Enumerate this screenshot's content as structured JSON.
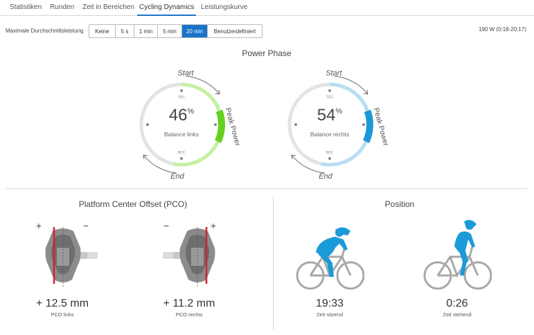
{
  "tabs": [
    {
      "label": "Statistiken"
    },
    {
      "label": "Runden"
    },
    {
      "label": "Zeit in Bereichen"
    },
    {
      "label": "Cycling Dynamics",
      "active": true
    },
    {
      "label": "Leistungskurve"
    }
  ],
  "mdl": {
    "label": "Maximale Durchschnittsleistung",
    "options": [
      {
        "label": "Keine"
      },
      {
        "label": "5 s"
      },
      {
        "label": "1 min"
      },
      {
        "label": "5 min"
      },
      {
        "label": "20 min",
        "active": true
      },
      {
        "label": "Benutzerdefiniert"
      }
    ],
    "range": "190 W (0:18-20:17)"
  },
  "power_phase": {
    "title": "Power Phase",
    "left": {
      "percent": "46",
      "unit": "%",
      "label": "Balance links",
      "color": "#64d21f",
      "light": "#c5f0a2",
      "start": "Start",
      "end": "End",
      "peak": "Peak Power",
      "tdc": "TDC",
      "bdc": "BDC"
    },
    "right": {
      "percent": "54",
      "unit": "%",
      "label": "Balance rechts",
      "color": "#1b9ad8",
      "light": "#b7def3",
      "start": "Start",
      "end": "End",
      "peak": "Peak Power",
      "tdc": "TDC",
      "bdc": "BDC"
    }
  },
  "pco": {
    "title": "Platform Center Offset (PCO)",
    "left": {
      "value": "+ 12.5 mm",
      "label": "PCO links",
      "plus": "+",
      "minus": "−"
    },
    "right": {
      "value": "+ 11.2 mm",
      "label": "PCO rechts",
      "plus": "+",
      "minus": "−"
    }
  },
  "position": {
    "title": "Position",
    "seated": {
      "time": "19:33",
      "label": "Zeit sitzend"
    },
    "standing": {
      "time": "0:26",
      "label": "Zeit stehend"
    }
  },
  "colors": {
    "accent": "#1a73c9",
    "rider": "#1b9ad8",
    "bike": "#a8a8a8",
    "pco_line": "#d0202e"
  }
}
